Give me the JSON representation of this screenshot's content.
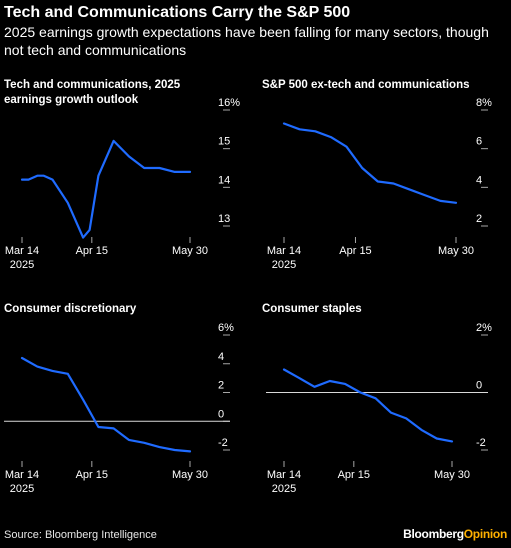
{
  "title": "Tech and Communications Carry the S&P 500",
  "subtitle": "2025 earnings growth expectations have been falling for many sectors, though not tech and communications",
  "source": "Source: Bloomberg Intelligence",
  "brand": {
    "name": "Bloomberg",
    "suffix": "Opinion"
  },
  "colors": {
    "line": "#1f6bff",
    "background": "#000000",
    "text": "#ffffff",
    "axis": "#a6a6a6",
    "brand_accent": "#ffb000"
  },
  "chart_data": [
    {
      "type": "line",
      "title": "Tech and communications, 2025 earnings growth outlook",
      "x": [
        "2025-03-14",
        "2025-03-17",
        "2025-03-21",
        "2025-03-24",
        "2025-03-28",
        "2025-04-04",
        "2025-04-11",
        "2025-04-14",
        "2025-04-18",
        "2025-04-25",
        "2025-05-02",
        "2025-05-09",
        "2025-05-16",
        "2025-05-23",
        "2025-05-30"
      ],
      "values": [
        14.2,
        14.2,
        14.3,
        14.3,
        14.2,
        13.6,
        12.7,
        12.9,
        14.3,
        15.2,
        14.8,
        14.5,
        14.5,
        14.4,
        14.4
      ],
      "ylim": [
        13,
        16
      ],
      "yticks": [
        "16%",
        "15",
        "14",
        "13"
      ],
      "xticks": [
        "Mar 14\n2025",
        "Apr 15",
        "May 30"
      ]
    },
    {
      "type": "line",
      "title": "S&P 500 ex-tech and communications",
      "x": [
        "2025-03-14",
        "2025-03-21",
        "2025-03-28",
        "2025-04-04",
        "2025-04-11",
        "2025-04-18",
        "2025-04-25",
        "2025-05-02",
        "2025-05-09",
        "2025-05-16",
        "2025-05-23",
        "2025-05-30"
      ],
      "values": [
        7.3,
        7.0,
        6.9,
        6.6,
        6.1,
        5.0,
        4.3,
        4.2,
        3.9,
        3.6,
        3.3,
        3.2
      ],
      "ylim": [
        2,
        8
      ],
      "yticks": [
        "8%",
        "6",
        "4",
        "2"
      ],
      "xticks": [
        "Mar 14\n2025",
        "Apr 15",
        "May 30"
      ]
    },
    {
      "type": "line",
      "title": "Consumer discretionary",
      "x": [
        "2025-03-14",
        "2025-03-21",
        "2025-03-28",
        "2025-04-04",
        "2025-04-11",
        "2025-04-18",
        "2025-04-25",
        "2025-05-02",
        "2025-05-09",
        "2025-05-16",
        "2025-05-23",
        "2025-05-30"
      ],
      "values": [
        4.4,
        3.8,
        3.5,
        3.3,
        1.5,
        -0.4,
        -0.5,
        -1.3,
        -1.5,
        -1.8,
        -2.0,
        -2.1
      ],
      "ylim": [
        -2,
        6
      ],
      "yticks": [
        "6%",
        "4",
        "2",
        "0",
        "-2"
      ],
      "xticks": [
        "Mar 14\n2025",
        "Apr 15",
        "May 30"
      ]
    },
    {
      "type": "line",
      "title": "Consumer staples",
      "x": [
        "2025-03-14",
        "2025-03-21",
        "2025-03-28",
        "2025-04-04",
        "2025-04-11",
        "2025-04-18",
        "2025-04-25",
        "2025-05-02",
        "2025-05-09",
        "2025-05-16",
        "2025-05-23",
        "2025-05-30"
      ],
      "values": [
        0.8,
        0.5,
        0.2,
        0.4,
        0.3,
        0.0,
        -0.2,
        -0.7,
        -0.9,
        -1.3,
        -1.6,
        -1.7
      ],
      "ylim": [
        -2,
        2
      ],
      "yticks": [
        "2%",
        "0",
        "-2"
      ],
      "xticks": [
        "Mar 14\n2025",
        "Apr 15",
        "May 30"
      ]
    }
  ]
}
